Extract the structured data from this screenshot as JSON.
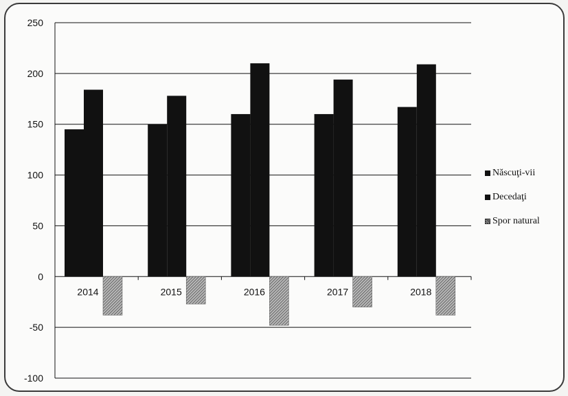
{
  "chart_data": {
    "type": "bar",
    "categories": [
      "2014",
      "2015",
      "2016",
      "2017",
      "2018"
    ],
    "series": [
      {
        "name": "Născuţi-vii",
        "values": [
          145,
          150,
          160,
          160,
          167
        ],
        "color": "#111111"
      },
      {
        "name": "Decedaţi",
        "values": [
          184,
          178,
          210,
          194,
          209
        ],
        "color": "#111111"
      },
      {
        "name": "Spor natural",
        "values": [
          -38,
          -27,
          -48,
          -30,
          -38
        ],
        "color": "#9a9a9a",
        "pattern": "hatched"
      }
    ],
    "y_ticks": [
      "250",
      "200",
      "150",
      "100",
      "50",
      "0",
      "-50",
      "-100"
    ],
    "ylim": [
      -100,
      250
    ],
    "grid": true,
    "legend_position": "right"
  }
}
